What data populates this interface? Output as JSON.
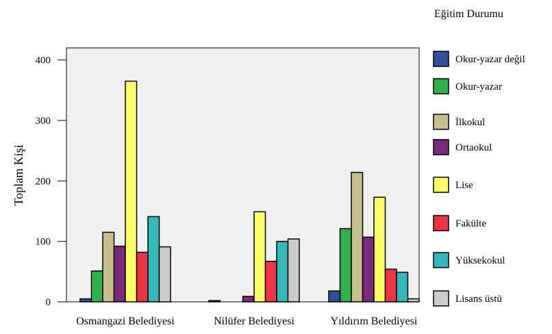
{
  "chart_data": {
    "type": "bar",
    "title": "",
    "xlabel": "",
    "ylabel": "Toplam  Kişi",
    "ylim": [
      0,
      400
    ],
    "yticks": [
      0,
      100,
      200,
      300,
      400
    ],
    "grid": false,
    "legend_title": "Eğitim Durumu",
    "legend_position": "right",
    "categories": [
      "Osmangazi Belediyesi",
      "Nilüfer Belediyesi",
      "Yıldırım Belediyesi"
    ],
    "series": [
      {
        "name": "Okur-yazar değil",
        "color": "#3050a0",
        "values": [
          5,
          2,
          18
        ]
      },
      {
        "name": "Okur-yazar",
        "color": "#2eb24a",
        "values": [
          51,
          0,
          121
        ]
      },
      {
        "name": "İlkokul",
        "color": "#c8c08c",
        "values": [
          115,
          0,
          214
        ]
      },
      {
        "name": "Ortaokul",
        "color": "#7b2a7e",
        "values": [
          92,
          9,
          107
        ]
      },
      {
        "name": "Lise",
        "color": "#ffff66",
        "values": [
          365,
          149,
          173
        ]
      },
      {
        "name": "Fakülte",
        "color": "#ee3344",
        "values": [
          82,
          67,
          54
        ]
      },
      {
        "name": "Yüksekokul",
        "color": "#33b8bc",
        "values": [
          141,
          100,
          49
        ]
      },
      {
        "name": "Lisans üstü",
        "color": "#cccccc",
        "values": [
          91,
          104,
          5
        ]
      }
    ]
  }
}
